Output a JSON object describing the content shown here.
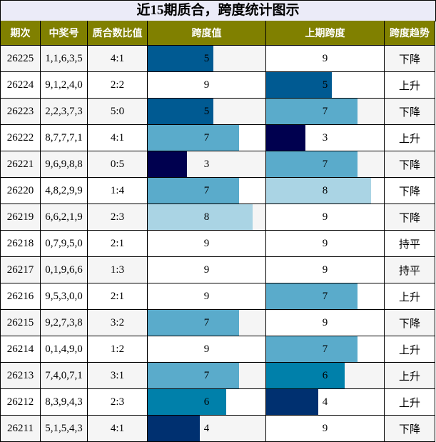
{
  "title": "近15期质合，跨度统计图示",
  "headers": [
    "期次",
    "中奖号",
    "质合数比值",
    "跨度值",
    "上期跨度",
    "跨度趋势"
  ],
  "colors": {
    "header_bg": "#808000",
    "title_bg": "#ebebf8",
    "row_even": "#f5f5f5",
    "row_odd": "#ffffff",
    "span_colors": {
      "3": "#00004f",
      "4": "#003070",
      "5": "#005a92",
      "6": "#0080aa",
      "7": "#5aabcb",
      "8": "#aad4e4",
      "9": "#ffffff"
    }
  },
  "chart_data": {
    "type": "table",
    "max_span": 9,
    "rows": [
      {
        "issue": "26225",
        "numbers": "1,1,6,3,5",
        "ratio": "4:1",
        "span": 5,
        "prev_span": 9,
        "trend": "下降"
      },
      {
        "issue": "26224",
        "numbers": "9,1,2,4,0",
        "ratio": "2:2",
        "span": 9,
        "prev_span": 5,
        "trend": "上升"
      },
      {
        "issue": "26223",
        "numbers": "2,2,3,7,3",
        "ratio": "5:0",
        "span": 5,
        "prev_span": 7,
        "trend": "下降"
      },
      {
        "issue": "26222",
        "numbers": "8,7,7,7,1",
        "ratio": "4:1",
        "span": 7,
        "prev_span": 3,
        "trend": "上升"
      },
      {
        "issue": "26221",
        "numbers": "9,6,9,8,8",
        "ratio": "0:5",
        "span": 3,
        "prev_span": 7,
        "trend": "下降"
      },
      {
        "issue": "26220",
        "numbers": "4,8,2,9,9",
        "ratio": "1:4",
        "span": 7,
        "prev_span": 8,
        "trend": "下降"
      },
      {
        "issue": "26219",
        "numbers": "6,6,2,1,9",
        "ratio": "2:3",
        "span": 8,
        "prev_span": 9,
        "trend": "下降"
      },
      {
        "issue": "26218",
        "numbers": "0,7,9,5,0",
        "ratio": "2:1",
        "span": 9,
        "prev_span": 9,
        "trend": "持平"
      },
      {
        "issue": "26217",
        "numbers": "0,1,9,6,6",
        "ratio": "1:3",
        "span": 9,
        "prev_span": 9,
        "trend": "持平"
      },
      {
        "issue": "26216",
        "numbers": "9,5,3,0,0",
        "ratio": "2:1",
        "span": 9,
        "prev_span": 7,
        "trend": "上升"
      },
      {
        "issue": "26215",
        "numbers": "9,2,7,3,8",
        "ratio": "3:2",
        "span": 7,
        "prev_span": 9,
        "trend": "下降"
      },
      {
        "issue": "26214",
        "numbers": "0,1,4,9,0",
        "ratio": "1:2",
        "span": 9,
        "prev_span": 7,
        "trend": "上升"
      },
      {
        "issue": "26213",
        "numbers": "7,4,0,7,1",
        "ratio": "3:1",
        "span": 7,
        "prev_span": 6,
        "trend": "上升"
      },
      {
        "issue": "26212",
        "numbers": "8,3,9,4,3",
        "ratio": "2:3",
        "span": 6,
        "prev_span": 4,
        "trend": "上升"
      },
      {
        "issue": "26211",
        "numbers": "5,1,5,4,3",
        "ratio": "4:1",
        "span": 4,
        "prev_span": 9,
        "trend": "下降"
      }
    ]
  }
}
